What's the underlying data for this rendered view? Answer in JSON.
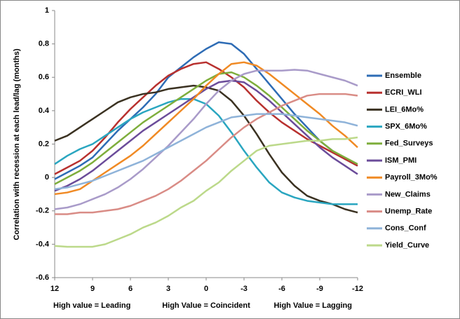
{
  "chart_data": {
    "type": "line",
    "ylabel": "Correlation with recession at each lead/lag (months)",
    "annotations": [
      "High value = Leading",
      "High Value = Coincident",
      "High Value = Lagging"
    ],
    "x": [
      12,
      11,
      10,
      9,
      8,
      7,
      6,
      5,
      4,
      3,
      2,
      1,
      0,
      -1,
      -2,
      -3,
      -4,
      -5,
      -6,
      -7,
      -8,
      -9,
      -10,
      -11,
      -12
    ],
    "xlim": [
      12,
      -12
    ],
    "xticks": [
      12,
      9,
      6,
      3,
      0,
      -3,
      -6,
      -9,
      -12
    ],
    "ylim": [
      -0.6,
      1
    ],
    "yticks": [
      -0.6,
      -0.4,
      -0.2,
      0,
      0.2,
      0.4,
      0.6,
      0.8,
      1
    ],
    "grid": false,
    "legend": "right",
    "series": [
      {
        "name": "Ensemble",
        "color": "#2e6cb5",
        "values": [
          -0.01,
          0.03,
          0.07,
          0.12,
          0.2,
          0.28,
          0.35,
          0.42,
          0.5,
          0.6,
          0.66,
          0.72,
          0.77,
          0.81,
          0.8,
          0.74,
          0.65,
          0.56,
          0.47,
          0.38,
          0.3,
          0.22,
          0.16,
          0.11,
          0.07
        ]
      },
      {
        "name": "ECRI_WLI",
        "color": "#b8312f",
        "values": [
          0.02,
          0.06,
          0.1,
          0.16,
          0.24,
          0.33,
          0.41,
          0.48,
          0.55,
          0.61,
          0.65,
          0.68,
          0.69,
          0.65,
          0.6,
          0.54,
          0.46,
          0.39,
          0.33,
          0.28,
          0.23,
          0.19,
          0.15,
          0.11,
          0.07
        ]
      },
      {
        "name": "LEI_6Mo%",
        "color": "#3b3222",
        "values": [
          0.22,
          0.25,
          0.3,
          0.35,
          0.4,
          0.45,
          0.48,
          0.5,
          0.51,
          0.53,
          0.54,
          0.55,
          0.54,
          0.52,
          0.46,
          0.37,
          0.26,
          0.14,
          0.03,
          -0.05,
          -0.11,
          -0.14,
          -0.16,
          -0.19,
          -0.21
        ]
      },
      {
        "name": "SPX_6Mo%",
        "color": "#2aa6c0",
        "values": [
          0.08,
          0.13,
          0.17,
          0.2,
          0.25,
          0.3,
          0.35,
          0.39,
          0.42,
          0.45,
          0.47,
          0.47,
          0.44,
          0.37,
          0.27,
          0.16,
          0.06,
          -0.03,
          -0.09,
          -0.12,
          -0.14,
          -0.15,
          -0.16,
          -0.16,
          -0.16
        ]
      },
      {
        "name": "Fed_Surveys",
        "color": "#7eae3c",
        "values": [
          -0.04,
          0,
          0.04,
          0.09,
          0.15,
          0.21,
          0.27,
          0.33,
          0.38,
          0.43,
          0.48,
          0.53,
          0.58,
          0.62,
          0.63,
          0.6,
          0.55,
          0.49,
          0.42,
          0.35,
          0.28,
          0.22,
          0.16,
          0.12,
          0.08
        ]
      },
      {
        "name": "ISM_PMI",
        "color": "#6b4c9a",
        "values": [
          -0.08,
          -0.05,
          -0.01,
          0.04,
          0.1,
          0.16,
          0.22,
          0.28,
          0.33,
          0.38,
          0.43,
          0.48,
          0.53,
          0.57,
          0.58,
          0.57,
          0.52,
          0.46,
          0.39,
          0.32,
          0.25,
          0.18,
          0.12,
          0.07,
          0.02
        ]
      },
      {
        "name": "Payroll_3Mo%",
        "color": "#f08a24",
        "values": [
          -0.1,
          -0.09,
          -0.07,
          -0.02,
          0.03,
          0.08,
          0.13,
          0.19,
          0.26,
          0.33,
          0.4,
          0.47,
          0.55,
          0.62,
          0.68,
          0.69,
          0.67,
          0.62,
          0.56,
          0.5,
          0.44,
          0.38,
          0.31,
          0.25,
          0.18
        ]
      },
      {
        "name": "New_Claims",
        "color": "#a99bc9",
        "values": [
          -0.19,
          -0.18,
          -0.16,
          -0.13,
          -0.1,
          -0.06,
          -0.01,
          0.05,
          0.12,
          0.19,
          0.27,
          0.35,
          0.44,
          0.52,
          0.58,
          0.62,
          0.64,
          0.64,
          0.64,
          0.645,
          0.64,
          0.62,
          0.6,
          0.58,
          0.55
        ]
      },
      {
        "name": "Unemp_Rate",
        "color": "#d98c86",
        "values": [
          -0.22,
          -0.22,
          -0.21,
          -0.21,
          -0.2,
          -0.19,
          -0.17,
          -0.14,
          -0.11,
          -0.07,
          -0.02,
          0.04,
          0.1,
          0.17,
          0.24,
          0.3,
          0.35,
          0.39,
          0.43,
          0.46,
          0.49,
          0.5,
          0.5,
          0.5,
          0.49
        ]
      },
      {
        "name": "Cons_Conf",
        "color": "#8fb3d9",
        "values": [
          -0.07,
          -0.06,
          -0.04,
          -0.02,
          0.01,
          0.04,
          0.07,
          0.1,
          0.14,
          0.18,
          0.22,
          0.26,
          0.3,
          0.33,
          0.36,
          0.37,
          0.38,
          0.38,
          0.38,
          0.37,
          0.36,
          0.35,
          0.34,
          0.33,
          0.31
        ]
      },
      {
        "name": "Yield_Curve",
        "color": "#bcd98a",
        "values": [
          -0.41,
          -0.415,
          -0.415,
          -0.415,
          -0.4,
          -0.37,
          -0.34,
          -0.3,
          -0.27,
          -0.23,
          -0.18,
          -0.14,
          -0.08,
          -0.03,
          0.04,
          0.1,
          0.16,
          0.19,
          0.2,
          0.21,
          0.22,
          0.22,
          0.23,
          0.23,
          0.24
        ]
      }
    ]
  }
}
